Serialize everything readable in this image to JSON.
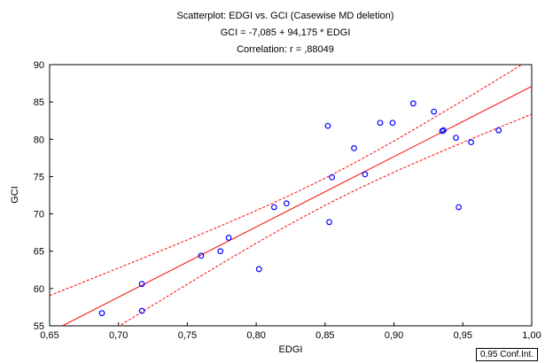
{
  "chart_data": {
    "type": "scatter",
    "title": "Scatterplot: EDGI vs. GCI (Casewise MD deletion)",
    "subtitle_equation": "GCI = -7,085 + 94,175 * EDGI",
    "subtitle_correlation": "Correlation: r = ,88049",
    "xlabel": "EDGI",
    "ylabel": "GCI",
    "xlim": [
      0.65,
      1.0
    ],
    "ylim": [
      55,
      90
    ],
    "x_ticks": [
      0.65,
      0.7,
      0.75,
      0.8,
      0.85,
      0.9,
      0.95,
      1.0
    ],
    "x_tick_labels": [
      "0,65",
      "0,70",
      "0,75",
      "0,80",
      "0,85",
      "0,90",
      "0,95",
      "1,00"
    ],
    "y_ticks": [
      55,
      60,
      65,
      70,
      75,
      80,
      85,
      90
    ],
    "y_tick_labels": [
      "55",
      "60",
      "65",
      "70",
      "75",
      "80",
      "85",
      "90"
    ],
    "grid": false,
    "regression": {
      "intercept": -7.085,
      "slope": 94.175
    },
    "confidence_band_label": "0,95 Conf.Int.",
    "points": [
      {
        "x": 0.688,
        "y": 56.7
      },
      {
        "x": 0.717,
        "y": 60.6
      },
      {
        "x": 0.717,
        "y": 57.0
      },
      {
        "x": 0.76,
        "y": 64.4
      },
      {
        "x": 0.774,
        "y": 65.0
      },
      {
        "x": 0.78,
        "y": 66.8
      },
      {
        "x": 0.802,
        "y": 62.6
      },
      {
        "x": 0.813,
        "y": 70.9
      },
      {
        "x": 0.822,
        "y": 71.4
      },
      {
        "x": 0.852,
        "y": 81.8
      },
      {
        "x": 0.853,
        "y": 68.9
      },
      {
        "x": 0.855,
        "y": 74.9
      },
      {
        "x": 0.871,
        "y": 78.8
      },
      {
        "x": 0.879,
        "y": 75.3
      },
      {
        "x": 0.89,
        "y": 82.2
      },
      {
        "x": 0.899,
        "y": 82.2
      },
      {
        "x": 0.914,
        "y": 84.8
      },
      {
        "x": 0.929,
        "y": 83.7
      },
      {
        "x": 0.935,
        "y": 81.1
      },
      {
        "x": 0.936,
        "y": 81.2
      },
      {
        "x": 0.945,
        "y": 80.2
      },
      {
        "x": 0.947,
        "y": 70.9
      },
      {
        "x": 0.956,
        "y": 79.6
      },
      {
        "x": 0.976,
        "y": 81.2
      }
    ],
    "colors": {
      "points": "#0000ff",
      "regression_line": "#ff0000",
      "confidence_lines": "#ff0000",
      "axes": "#000000"
    }
  }
}
